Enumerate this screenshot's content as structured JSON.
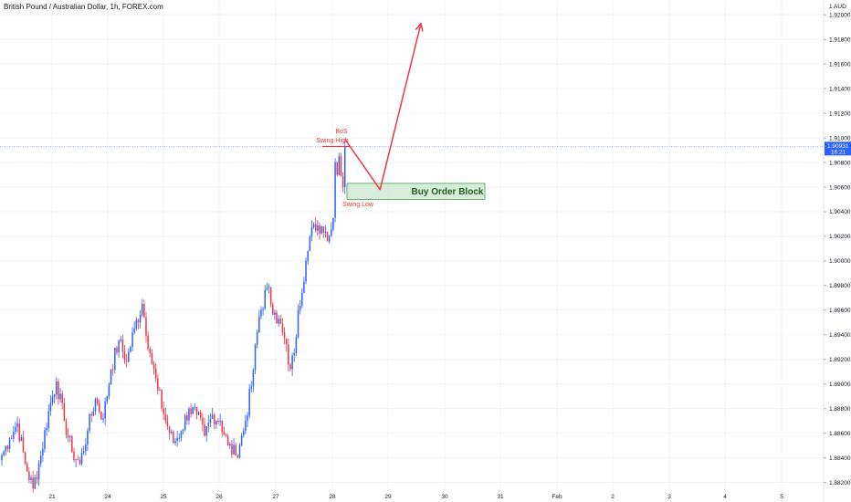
{
  "header": {
    "title": "British Pound / Australian Dollar, 1h, FOREX.com"
  },
  "colors": {
    "up": "#2962ff",
    "down": "#f23645",
    "annotation": "#f23645",
    "order_block_fill": "#c8e6c9",
    "order_block_border": "#43a047",
    "price_line": "#2962ff",
    "grid": "#f0f3fa"
  },
  "chart_data": {
    "type": "candlestick",
    "symbol": "British Pound / Australian Dollar",
    "interval": "1h",
    "source": "FOREX.com",
    "currency_label": "AUD",
    "x_ticks": [
      "21",
      "24",
      "25",
      "26",
      "27",
      "28",
      "29",
      "30",
      "31",
      "Feb",
      "2",
      "3",
      "4",
      "5"
    ],
    "y_ticks": [
      "1.92000",
      "1.91800",
      "1.91600",
      "1.91400",
      "1.91200",
      "1.91000",
      "1.90800",
      "1.90600",
      "1.90400",
      "1.90200",
      "1.90000",
      "1.89800",
      "1.89600",
      "1.89400",
      "1.89200",
      "1.89000",
      "1.88800",
      "1.88600",
      "1.88400",
      "1.88200"
    ],
    "ylim": [
      1.8813,
      1.9212
    ],
    "current_price": "1.90931",
    "countdown": "16:21",
    "close_path": [
      [
        0,
        1.8842
      ],
      [
        4,
        1.8856
      ],
      [
        8,
        1.8868
      ],
      [
        12,
        1.8835
      ],
      [
        16,
        1.8815
      ],
      [
        20,
        1.8842
      ],
      [
        24,
        1.8878
      ],
      [
        28,
        1.8902
      ],
      [
        32,
        1.887
      ],
      [
        36,
        1.8845
      ],
      [
        40,
        1.8835
      ],
      [
        44,
        1.8862
      ],
      [
        48,
        1.8888
      ],
      [
        52,
        1.8872
      ],
      [
        56,
        1.8912
      ],
      [
        60,
        1.8935
      ],
      [
        64,
        1.8918
      ],
      [
        68,
        1.8945
      ],
      [
        72,
        1.8965
      ],
      [
        76,
        1.8925
      ],
      [
        80,
        1.8895
      ],
      [
        84,
        1.887
      ],
      [
        88,
        1.8852
      ],
      [
        92,
        1.8862
      ],
      [
        96,
        1.888
      ],
      [
        100,
        1.8875
      ],
      [
        104,
        1.8858
      ],
      [
        108,
        1.8875
      ],
      [
        112,
        1.887
      ],
      [
        116,
        1.885
      ],
      [
        120,
        1.8842
      ],
      [
        124,
        1.8862
      ],
      [
        128,
        1.8898
      ],
      [
        132,
        1.8955
      ],
      [
        136,
        1.8978
      ],
      [
        140,
        1.8958
      ],
      [
        144,
        1.8942
      ],
      [
        148,
        1.8912
      ],
      [
        150,
        1.8925
      ],
      [
        152,
        1.896
      ],
      [
        156,
        1.9
      ],
      [
        160,
        1.903
      ],
      [
        164,
        1.9028
      ],
      [
        168,
        1.902
      ],
      [
        170,
        1.9035
      ],
      [
        171,
        1.908
      ],
      [
        172,
        1.907
      ],
      [
        173,
        1.9085
      ],
      [
        175,
        1.906
      ],
      [
        176,
        1.9093
      ]
    ],
    "annotations": {
      "bos": "BoS",
      "swing_high": "Swing High",
      "swing_low": "Swing Low",
      "order_block": "Buy Order Block",
      "order_block_range": [
        1.905,
        1.9063
      ],
      "projection_path": [
        [
          176,
          1.9099
        ],
        [
          194,
          1.9058
        ],
        [
          215,
          1.9193
        ]
      ]
    },
    "legend": "none",
    "grid": true
  }
}
